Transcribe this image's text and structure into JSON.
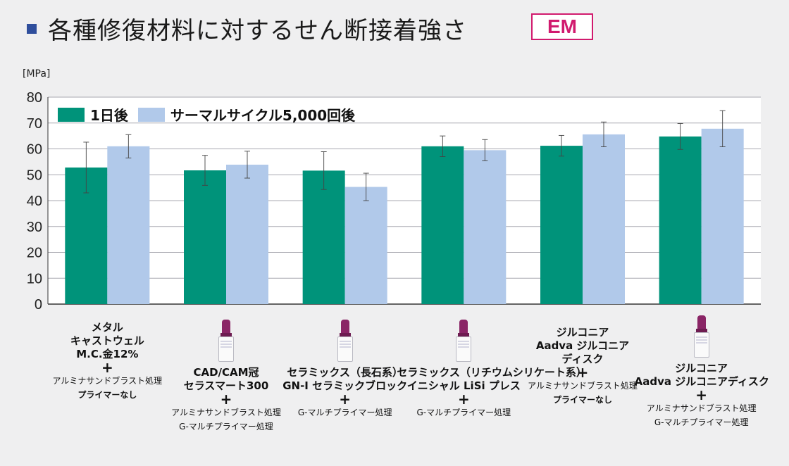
{
  "title": "各種修復材料に対するせん断接着強さ",
  "badge": "EM",
  "chart_data": {
    "type": "bar",
    "unit_label": "[MPa]",
    "ylim": [
      0,
      80
    ],
    "yticks": [
      0,
      10,
      20,
      30,
      40,
      50,
      60,
      70,
      80
    ],
    "grid": true,
    "legend_position": "top-left",
    "series": [
      {
        "name": "1日後",
        "color": "#00937a",
        "values": [
          52.8,
          51.7,
          51.6,
          61.0,
          61.2,
          64.8
        ],
        "errors": [
          9.8,
          5.8,
          7.3,
          4.0,
          4.0,
          5.0
        ]
      },
      {
        "name": "サーマルサイクル5,000回後",
        "color": "#b1c9ea",
        "values": [
          61.0,
          53.9,
          45.3,
          59.5,
          65.6,
          67.8
        ],
        "errors": [
          4.5,
          5.2,
          5.3,
          4.1,
          4.8,
          7.0
        ]
      }
    ],
    "categories": [
      {
        "lines": "メタル\nキャストウェル\nM.C.金12%",
        "plus": "+",
        "sub1": "アルミナサンドブラスト処理",
        "sub2": "プライマーなし",
        "bottle": false
      },
      {
        "lines": "CAD/CAM冠\nセラスマート300",
        "plus": "+",
        "sub1": "アルミナサンドブラスト処理",
        "sub2": "G-マルチプライマー処理",
        "bottle": true
      },
      {
        "lines": "セラミックス（長石系）\nGN-I セラミックブロック",
        "plus": "+",
        "sub1": "G-マルチプライマー処理",
        "sub2": "",
        "bottle": true
      },
      {
        "lines": "セラミックス（リチウムシリケート系）\nイニシャル LiSi プレス",
        "plus": "+",
        "sub1": "G-マルチプライマー処理",
        "sub2": "",
        "bottle": true
      },
      {
        "lines": "ジルコニア\nAadva ジルコニア\nディスク",
        "plus": "+",
        "sub1": "アルミナサンドブラスト処理",
        "sub2": "プライマーなし",
        "bottle": false
      },
      {
        "lines": "ジルコニア\nAadva ジルコニアディスク",
        "plus": "+",
        "sub1": "アルミナサンドブラスト処理",
        "sub2": "G-マルチプライマー処理",
        "bottle": true
      }
    ]
  }
}
